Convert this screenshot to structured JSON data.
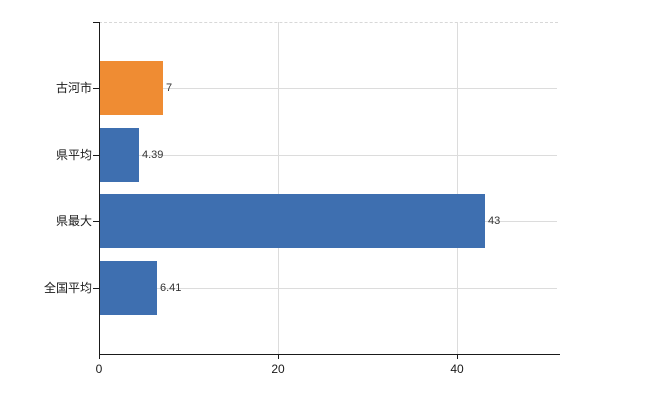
{
  "chart_data": {
    "type": "bar",
    "orientation": "horizontal",
    "title": "",
    "xlabel": "",
    "ylabel": "",
    "categories": [
      "古河市",
      "県平均",
      "県最大",
      "全国平均"
    ],
    "values": [
      7,
      4.39,
      43,
      6.41
    ],
    "value_labels": [
      "7",
      "4.39",
      "43",
      "6.41"
    ],
    "bar_colors": [
      "#EF8C33",
      "#3E6FB0",
      "#3E6FB0",
      "#3E6FB0"
    ],
    "xlim": [
      0,
      51.5
    ],
    "xticks": [
      0,
      20,
      40
    ],
    "xtick_labels": [
      "0",
      "20",
      "40"
    ],
    "grid": true,
    "legend": "none",
    "colors": {
      "background": "#ffffff",
      "axis": "#1a1a1a",
      "grid": "#dcdcdc",
      "top_border_dashed": "#d8d8d8",
      "category_text": "#1a1a1a",
      "tick_text": "#1a1a1a",
      "value_text": "#333333",
      "bar_blue": "#3E6FB0",
      "bar_orange": "#EF8C33"
    }
  }
}
